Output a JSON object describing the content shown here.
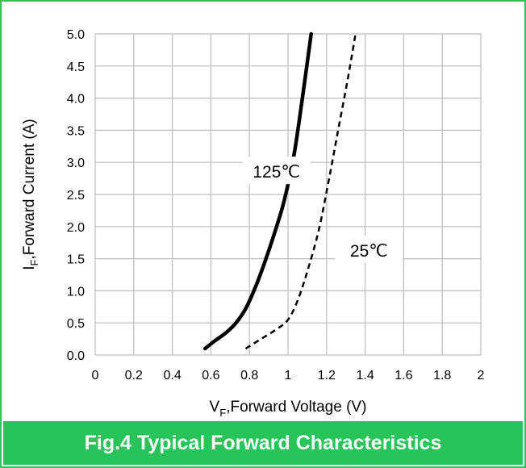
{
  "caption": "Fig.4 Typical Forward Characteristics",
  "colors": {
    "frame": "#2ec65a",
    "caption_bar": "#28c35a",
    "caption_text": "#ffffff",
    "grid": "#bdbdbd",
    "curve": "#000000"
  },
  "chart_data": {
    "type": "line",
    "title": "",
    "xlabel": {
      "main": "V",
      "sub": "F",
      "rest": ",Forward Voltage (V)"
    },
    "ylabel": {
      "main": "I",
      "sub": "F",
      "rest": ",Forward Current (A)"
    },
    "xlim": [
      0,
      2
    ],
    "ylim": [
      0,
      5
    ],
    "xticks": [
      0,
      0.2,
      0.4,
      0.6,
      0.8,
      1,
      1.2,
      1.4,
      1.6,
      1.8,
      2
    ],
    "xtick_labels": [
      "0",
      "0.2",
      "0.4",
      "0.6",
      "0.8",
      "1",
      "1.2",
      "1.4",
      "1.6",
      "1.8",
      "2"
    ],
    "yticks": [
      0,
      0.5,
      1,
      1.5,
      2,
      2.5,
      3,
      3.5,
      4,
      4.5,
      5
    ],
    "ytick_labels": [
      "0.0",
      "0.5",
      "1.0",
      "1.5",
      "2.0",
      "2.5",
      "3.0",
      "3.5",
      "4.0",
      "4.5",
      "5.0"
    ],
    "grid": true,
    "series": [
      {
        "name": "125℃",
        "style": "solid",
        "x": [
          0.57,
          0.62,
          0.68,
          0.73,
          0.78,
          0.83,
          0.88,
          0.93,
          0.98,
          1.03,
          1.07,
          1.12
        ],
        "y": [
          0.1,
          0.22,
          0.35,
          0.5,
          0.72,
          1.05,
          1.45,
          1.9,
          2.4,
          3.1,
          3.9,
          5.0
        ]
      },
      {
        "name": "25℃",
        "style": "dashed",
        "x": [
          0.78,
          0.86,
          0.94,
          1.0,
          1.05,
          1.1,
          1.16,
          1.21,
          1.26,
          1.31,
          1.35
        ],
        "y": [
          0.1,
          0.25,
          0.4,
          0.55,
          0.85,
          1.3,
          1.95,
          2.7,
          3.5,
          4.3,
          5.0
        ]
      }
    ],
    "annotations": [
      {
        "text": "125℃",
        "x": 0.94,
        "y": 2.85
      },
      {
        "text": "25℃",
        "x": 1.42,
        "y": 1.62
      }
    ]
  }
}
